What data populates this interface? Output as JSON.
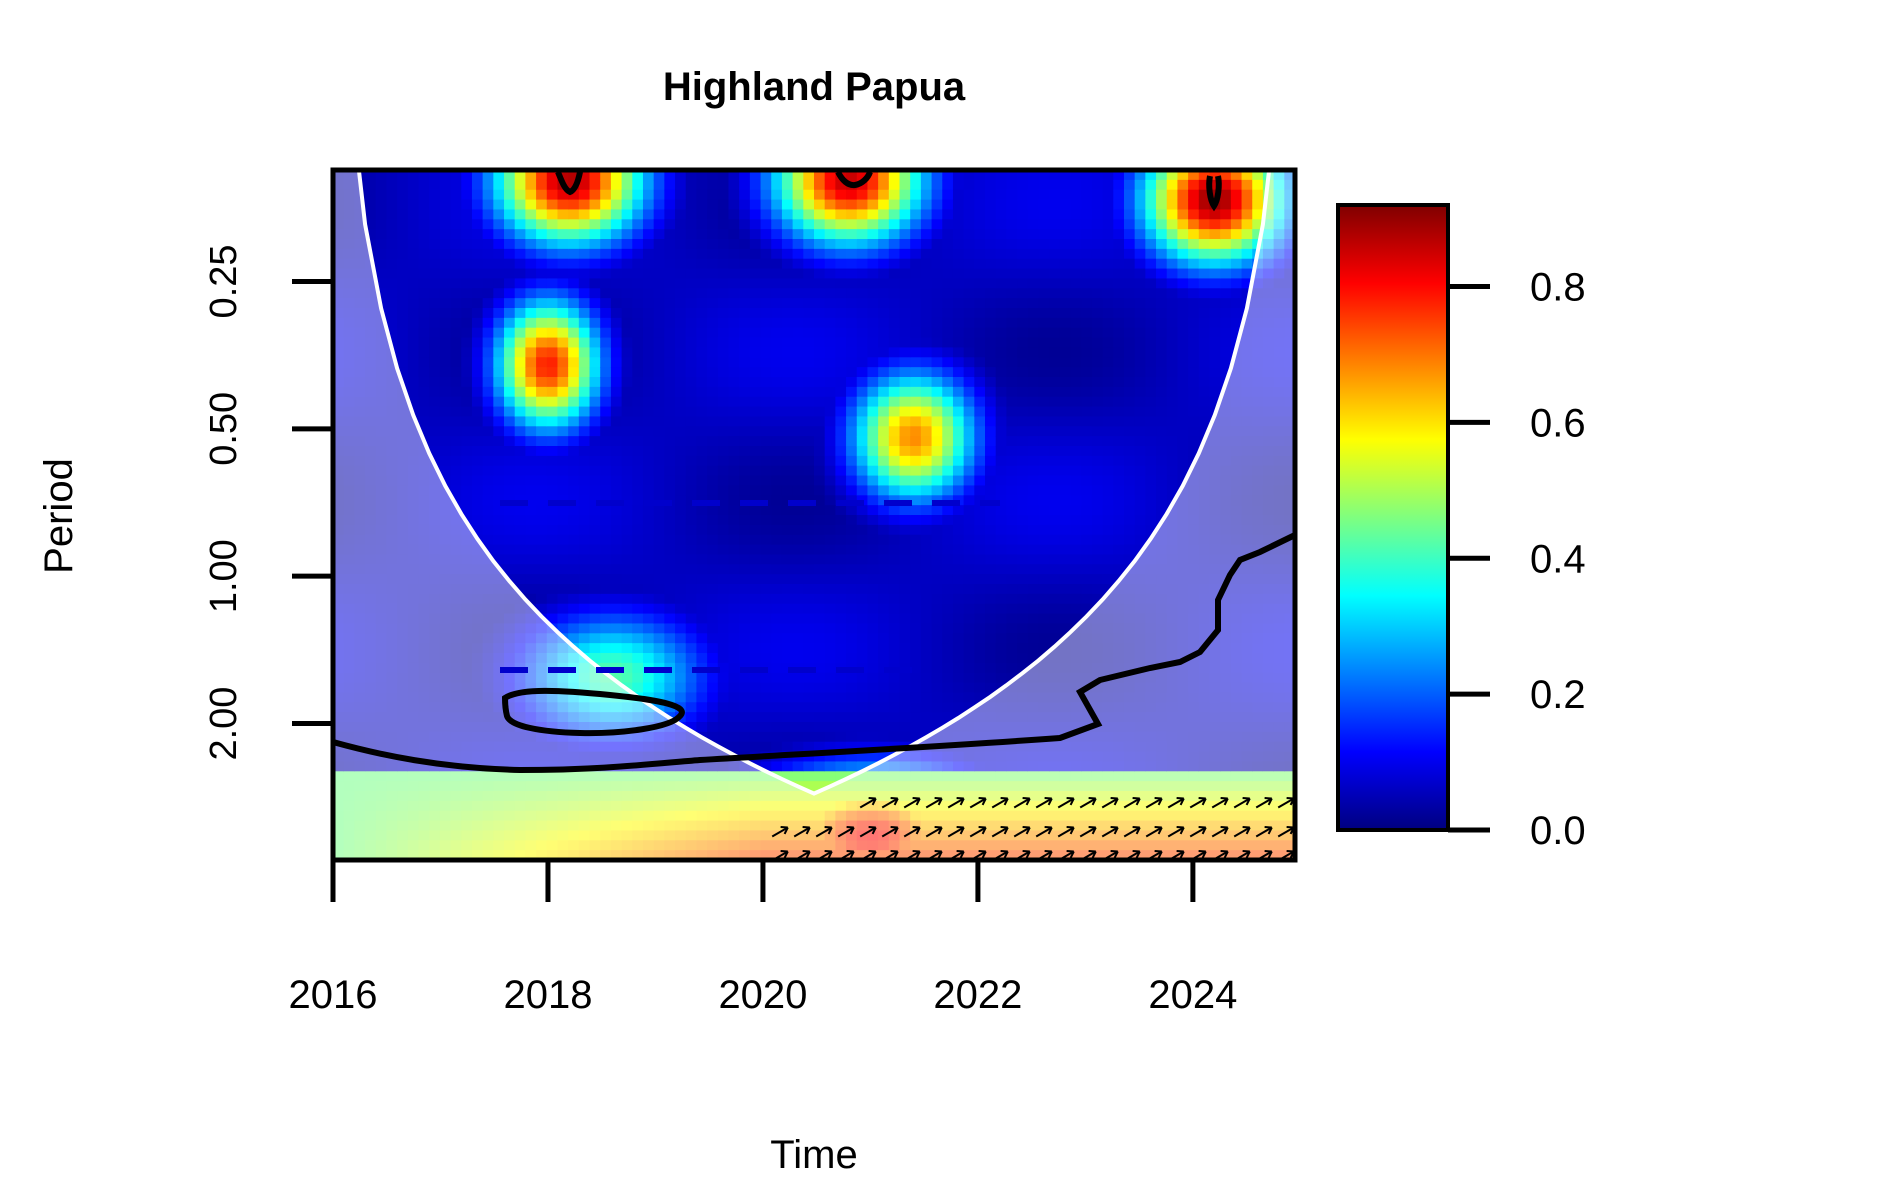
{
  "chart_data": {
    "type": "heatmap",
    "title": "Highland Papua",
    "xlabel": "Time",
    "ylabel": "Period",
    "x_ticks": [
      2016,
      2018,
      2020,
      2022,
      2024
    ],
    "xlim": [
      2016,
      2024.95
    ],
    "y_scale": "log2",
    "y_ticks": [
      "0.25",
      "0.50",
      "1.00",
      "2.00"
    ],
    "y_tick_values": [
      0.25,
      0.5,
      1.0,
      2.0
    ],
    "ylim": [
      0.148,
      3.8
    ],
    "colorbar": {
      "ticks": [
        "0.0",
        "0.2",
        "0.4",
        "0.6",
        "0.8"
      ],
      "tick_values": [
        0.0,
        0.2,
        0.4,
        0.6,
        0.8
      ],
      "range": [
        0.0,
        0.92
      ],
      "colors": [
        "#00007f",
        "#0000ff",
        "#007fff",
        "#00ffff",
        "#7fff7f",
        "#ffff00",
        "#ff7f00",
        "#ff0000",
        "#7f0000"
      ]
    },
    "power_peaks": [
      {
        "time": 2018.0,
        "period": 0.37,
        "power": 0.78
      },
      {
        "time": 2021.4,
        "period": 0.52,
        "power": 0.68
      },
      {
        "time": 2018.2,
        "period": 0.155,
        "power": 0.88
      },
      {
        "time": 2020.8,
        "period": 0.155,
        "power": 0.86
      },
      {
        "time": 2024.2,
        "period": 0.17,
        "power": 0.9
      },
      {
        "time": 2021.0,
        "period": 3.4,
        "power": 0.8
      },
      {
        "time": 2018.6,
        "period": 1.6,
        "power": 0.42
      }
    ],
    "cone_of_influence_color": "#ffffff",
    "grid": false
  }
}
